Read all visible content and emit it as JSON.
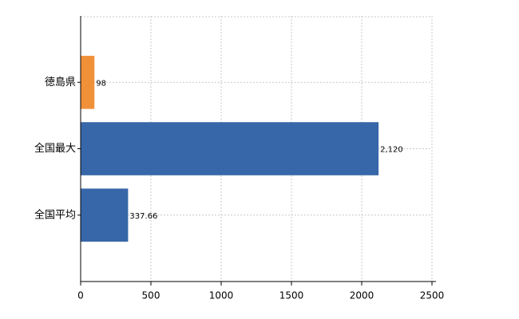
{
  "chart_data": {
    "type": "bar",
    "orientation": "horizontal",
    "categories": [
      "徳島県",
      "全国最大",
      "全国平均"
    ],
    "values": [
      98,
      2120,
      337.66
    ],
    "value_labels": [
      "98",
      "2,120",
      "337.66"
    ],
    "colors": [
      "#f0913a",
      "#3767a8",
      "#3767a8"
    ],
    "xlim": [
      0,
      2500
    ],
    "xticks": [
      0,
      500,
      1000,
      1500,
      2000,
      2500
    ],
    "grid": true
  }
}
